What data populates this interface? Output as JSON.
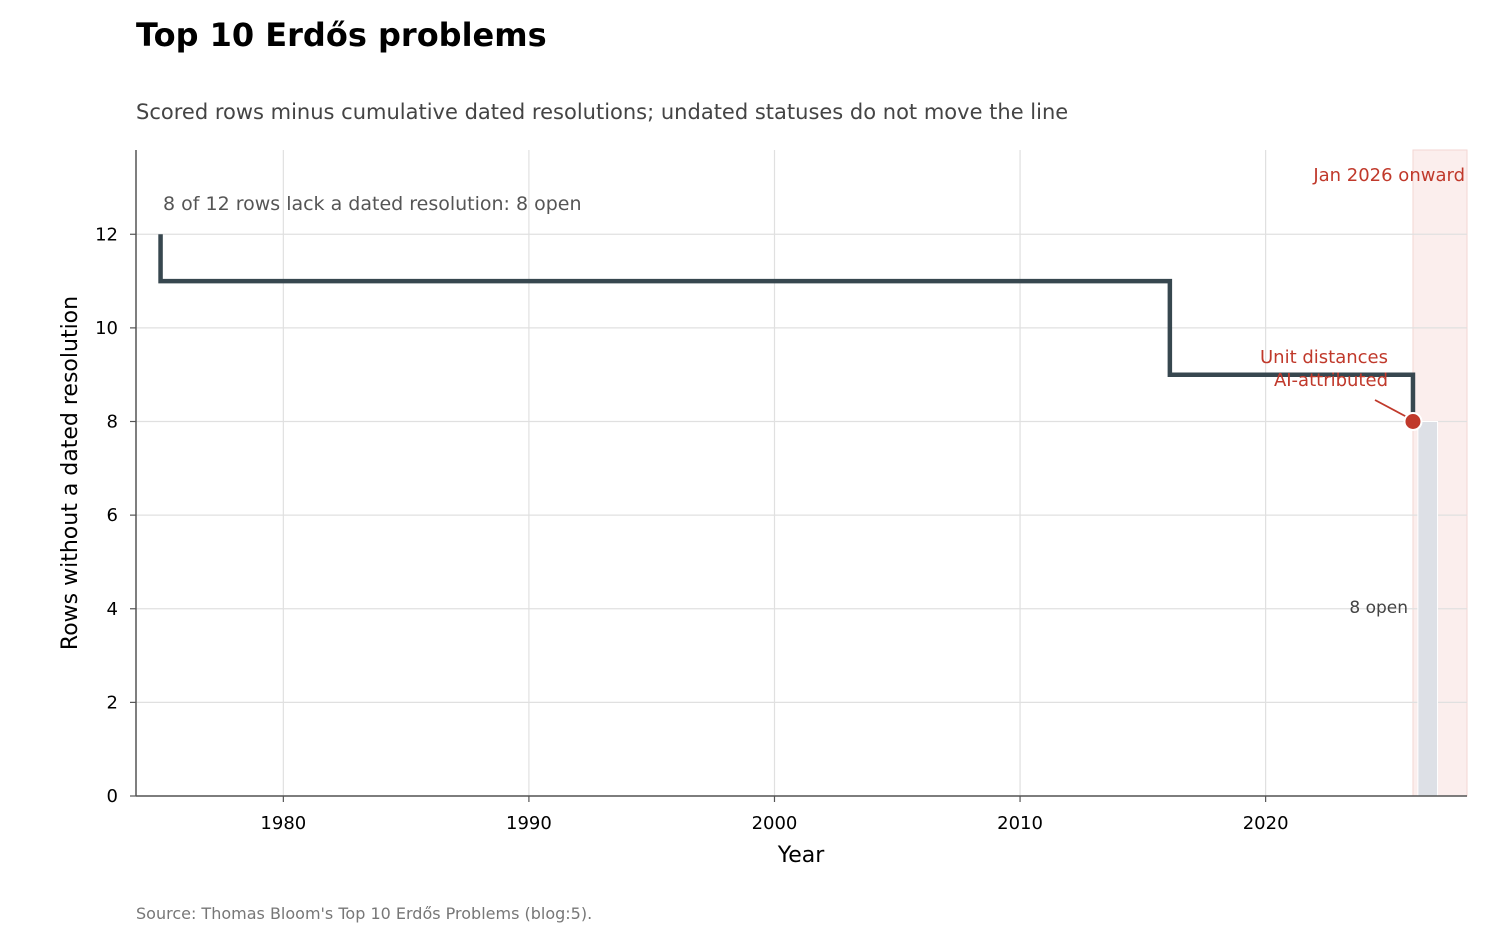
{
  "chart_data": {
    "type": "line",
    "title": "Top 10 Erdős problems",
    "subtitle": "Scored rows minus cumulative dated resolutions; undated statuses do not move the line",
    "xlabel": "Year",
    "ylabel": "Rows without a dated resolution",
    "xlim": [
      1974,
      2028.2
    ],
    "ylim": [
      0,
      13.8
    ],
    "x_ticks": [
      1980,
      1990,
      2000,
      2010,
      2020
    ],
    "y_ticks": [
      0,
      2,
      4,
      6,
      8,
      10,
      12
    ],
    "grid": true,
    "series": [
      {
        "step": "post",
        "color": "#37474f",
        "points": [
          {
            "x": 1975.0,
            "y": 12
          },
          {
            "x": 1975.0,
            "y": 11
          },
          {
            "x": 2016.1,
            "y": 9
          },
          {
            "x": 2026.0,
            "y": 8
          }
        ]
      }
    ],
    "highlight_point": {
      "x": 2026.0,
      "y": 8,
      "color": "#c0392b"
    },
    "bar": {
      "x_start": 2026.2,
      "x_end": 2027.0,
      "value": 8,
      "label": "8 open",
      "color": "#dde0e6"
    },
    "shaded_region": {
      "x_start": 2026.0,
      "x_end": 2028.2,
      "label": "Jan 2026 onward",
      "color": "#fbeeed"
    },
    "annotations": [
      {
        "text": "8 of 12 rows lack a dated resolution: 8 open"
      },
      {
        "text_lines": [
          "Unit distances",
          "AI-attributed"
        ],
        "x": 2026.0,
        "y": 8
      }
    ],
    "source": "Source: Thomas Bloom's Top 10 Erdős Problems (blog:5)."
  }
}
